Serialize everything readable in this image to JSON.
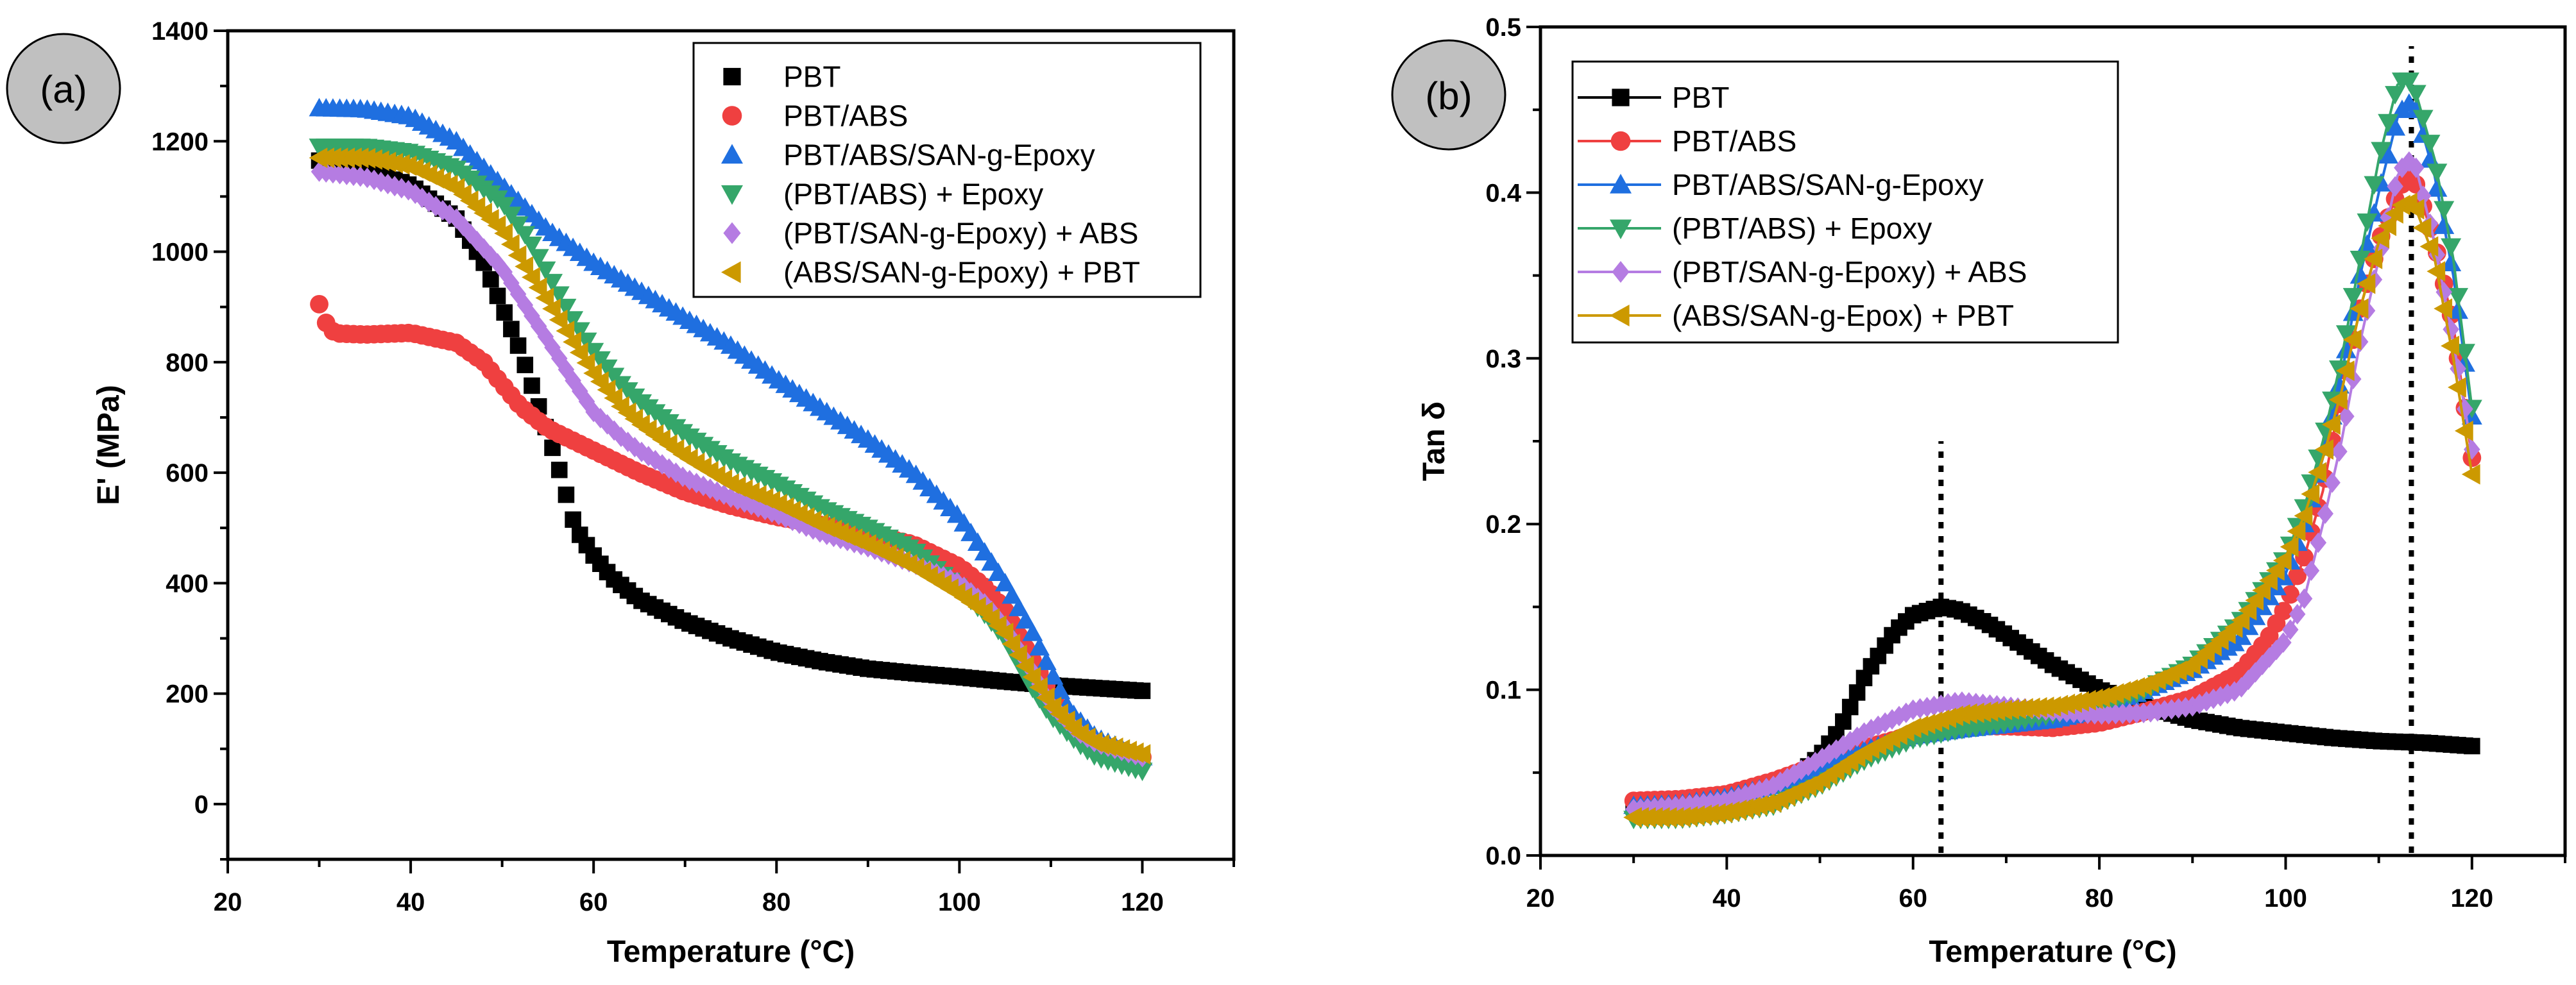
{
  "colors": {
    "PBT": "#000000",
    "PBT/ABS": "#ef4040",
    "PBT/ABS/SAN-g-Epoxy": "#1f6fe0",
    "(PBT/ABS) + Epoxy": "#35a66a",
    "(PBT/SAN-g-Epoxy) + ABS": "#b57ce2",
    "(ABS/SAN-g-Epoxy) + PBT": "#cc9900"
  },
  "chart_data": [
    {
      "panel_label": "(a)",
      "type": "scatter",
      "xlabel": "Temperature (°C)",
      "ylabel": "E' (MPa)",
      "xlim": [
        20,
        130
      ],
      "ylim": [
        -100,
        1400
      ],
      "xticks": [
        20,
        40,
        60,
        80,
        100,
        120
      ],
      "yticks": [
        0,
        200,
        400,
        600,
        800,
        1000,
        1200,
        1400
      ],
      "legend_position": "top-right",
      "series": [
        {
          "name": "PBT",
          "marker": "square",
          "x": [
            30,
            35,
            40,
            45,
            48,
            50,
            52,
            54,
            55,
            56,
            58,
            60,
            62,
            65,
            70,
            75,
            80,
            85,
            90,
            95,
            100,
            105,
            110,
            115,
            120
          ],
          "y": [
            1165,
            1150,
            1120,
            1060,
            980,
            900,
            820,
            720,
            670,
            620,
            500,
            450,
            410,
            370,
            330,
            300,
            275,
            258,
            245,
            237,
            230,
            222,
            215,
            210,
            205
          ]
        },
        {
          "name": "PBT/ABS",
          "marker": "circle",
          "x": [
            30,
            31,
            32,
            35,
            40,
            45,
            48,
            50,
            52,
            55,
            60,
            65,
            70,
            75,
            80,
            85,
            90,
            95,
            100,
            103,
            105,
            108,
            110,
            112,
            115,
            120
          ],
          "y": [
            905,
            860,
            852,
            850,
            853,
            835,
            800,
            760,
            720,
            680,
            640,
            600,
            565,
            540,
            520,
            505,
            490,
            470,
            430,
            390,
            350,
            260,
            200,
            150,
            110,
            85
          ]
        },
        {
          "name": "PBT/ABS/SAN-g-Epoxy",
          "marker": "triangle-up",
          "x": [
            30,
            35,
            40,
            45,
            50,
            55,
            60,
            65,
            70,
            75,
            80,
            85,
            90,
            95,
            100,
            103,
            105,
            108,
            110,
            112,
            115,
            120
          ],
          "y": [
            1260,
            1258,
            1245,
            1200,
            1120,
            1040,
            980,
            930,
            880,
            830,
            770,
            715,
            660,
            600,
            520,
            450,
            400,
            310,
            240,
            170,
            120,
            85
          ]
        },
        {
          "name": "(PBT/ABS) + Epoxy",
          "marker": "triangle-down",
          "x": [
            30,
            35,
            40,
            45,
            50,
            53,
            55,
            58,
            60,
            63,
            65,
            70,
            75,
            80,
            85,
            90,
            95,
            100,
            103,
            105,
            108,
            110,
            113,
            115,
            120
          ],
          "y": [
            1190,
            1190,
            1180,
            1150,
            1090,
            1020,
            960,
            870,
            820,
            760,
            730,
            670,
            620,
            580,
            535,
            500,
            460,
            390,
            340,
            300,
            210,
            160,
            110,
            85,
            60
          ]
        },
        {
          "name": "(PBT/SAN-g-Epoxy) + ABS",
          "marker": "diamond",
          "x": [
            30,
            35,
            40,
            45,
            50,
            53,
            55,
            58,
            60,
            63,
            65,
            70,
            75,
            80,
            85,
            90,
            95,
            100,
            103,
            105,
            108,
            110,
            113,
            115,
            120
          ],
          "y": [
            1145,
            1135,
            1110,
            1060,
            970,
            890,
            840,
            760,
            710,
            665,
            640,
            590,
            555,
            525,
            490,
            465,
            435,
            400,
            360,
            320,
            240,
            180,
            130,
            110,
            85
          ]
        },
        {
          "name": "(ABS/SAN-g-Epoxy) + PBT",
          "marker": "triangle-left",
          "x": [
            30,
            35,
            40,
            45,
            50,
            53,
            55,
            58,
            60,
            63,
            65,
            70,
            75,
            80,
            85,
            90,
            95,
            100,
            103,
            105,
            108,
            110,
            113,
            115,
            120
          ],
          "y": [
            1170,
            1170,
            1155,
            1115,
            1040,
            960,
            910,
            830,
            780,
            720,
            690,
            630,
            580,
            545,
            505,
            470,
            430,
            380,
            345,
            310,
            230,
            180,
            130,
            110,
            90
          ]
        }
      ]
    },
    {
      "panel_label": "(b)",
      "type": "line",
      "xlabel": "Temperature (°C)",
      "ylabel": "Tan δ",
      "xlim": [
        20,
        130
      ],
      "ylim": [
        0,
        0.5
      ],
      "xticks": [
        20,
        40,
        60,
        80,
        100,
        120
      ],
      "yticks": [
        "0.0",
        "0.1",
        "0.2",
        "0.3",
        "0.4",
        "0.5"
      ],
      "legend_position": "top-left",
      "annotations": [
        {
          "type": "dotted-vline",
          "x": 63,
          "y_top": 0.25
        },
        {
          "type": "dotted-vline",
          "x": 113.5,
          "y_top": 0.5
        }
      ],
      "series": [
        {
          "name": "PBT",
          "marker": "square",
          "x": [
            30,
            35,
            40,
            45,
            48,
            50,
            52,
            55,
            58,
            60,
            63,
            65,
            68,
            70,
            75,
            80,
            85,
            90,
            95,
            100,
            105,
            110,
            115,
            120
          ],
          "y": [
            0.03,
            0.031,
            0.035,
            0.043,
            0.05,
            0.06,
            0.075,
            0.11,
            0.135,
            0.145,
            0.15,
            0.148,
            0.14,
            0.133,
            0.115,
            0.1,
            0.09,
            0.082,
            0.077,
            0.074,
            0.071,
            0.069,
            0.068,
            0.066
          ]
        },
        {
          "name": "PBT/ABS",
          "marker": "circle",
          "x": [
            30,
            35,
            40,
            45,
            50,
            55,
            60,
            65,
            70,
            75,
            80,
            85,
            90,
            95,
            98,
            100,
            102,
            104,
            106,
            108,
            110,
            112,
            113,
            114,
            116,
            118,
            120
          ],
          "y": [
            0.033,
            0.034,
            0.037,
            0.045,
            0.055,
            0.065,
            0.073,
            0.078,
            0.078,
            0.077,
            0.08,
            0.087,
            0.095,
            0.11,
            0.13,
            0.15,
            0.18,
            0.22,
            0.28,
            0.33,
            0.37,
            0.4,
            0.41,
            0.405,
            0.37,
            0.32,
            0.24
          ]
        },
        {
          "name": "PBT/ABS/SAN-g-Epoxy",
          "marker": "triangle-up",
          "x": [
            30,
            35,
            40,
            45,
            50,
            55,
            60,
            65,
            70,
            75,
            80,
            85,
            90,
            95,
            100,
            102,
            104,
            106,
            108,
            110,
            112,
            113,
            114,
            116,
            118,
            120
          ],
          "y": [
            0.03,
            0.031,
            0.035,
            0.042,
            0.052,
            0.064,
            0.072,
            0.076,
            0.079,
            0.082,
            0.088,
            0.1,
            0.112,
            0.13,
            0.17,
            0.2,
            0.24,
            0.29,
            0.35,
            0.4,
            0.445,
            0.455,
            0.45,
            0.41,
            0.35,
            0.265
          ]
        },
        {
          "name": "(PBT/ABS) + Epoxy",
          "marker": "triangle-down",
          "x": [
            30,
            35,
            40,
            45,
            50,
            55,
            60,
            65,
            70,
            75,
            80,
            85,
            90,
            95,
            100,
            102,
            104,
            106,
            108,
            110,
            112,
            113,
            114,
            116,
            118,
            120
          ],
          "y": [
            0.022,
            0.022,
            0.025,
            0.03,
            0.042,
            0.058,
            0.07,
            0.076,
            0.08,
            0.085,
            0.09,
            0.1,
            0.115,
            0.14,
            0.18,
            0.21,
            0.25,
            0.3,
            0.36,
            0.42,
            0.465,
            0.47,
            0.46,
            0.42,
            0.36,
            0.27
          ]
        },
        {
          "name": "(PBT/SAN-g-Epoxy) + ABS",
          "marker": "diamond",
          "x": [
            30,
            35,
            40,
            45,
            50,
            55,
            60,
            65,
            70,
            75,
            80,
            85,
            90,
            95,
            100,
            102,
            104,
            106,
            108,
            110,
            112,
            113,
            114,
            116,
            118,
            120
          ],
          "y": [
            0.028,
            0.03,
            0.033,
            0.042,
            0.058,
            0.075,
            0.088,
            0.093,
            0.09,
            0.087,
            0.085,
            0.086,
            0.09,
            0.1,
            0.13,
            0.155,
            0.2,
            0.25,
            0.31,
            0.36,
            0.41,
            0.42,
            0.415,
            0.37,
            0.31,
            0.245
          ]
        },
        {
          "name": "(ABS/SAN-g-Epox) + PBT",
          "marker": "triangle-left",
          "x": [
            30,
            35,
            40,
            45,
            50,
            55,
            60,
            65,
            70,
            75,
            80,
            85,
            90,
            95,
            100,
            102,
            104,
            106,
            108,
            110,
            112,
            113,
            114,
            116,
            118,
            120
          ],
          "y": [
            0.023,
            0.023,
            0.026,
            0.032,
            0.045,
            0.063,
            0.077,
            0.085,
            0.088,
            0.09,
            0.095,
            0.103,
            0.115,
            0.14,
            0.18,
            0.205,
            0.24,
            0.28,
            0.33,
            0.37,
            0.39,
            0.395,
            0.39,
            0.36,
            0.3,
            0.23
          ]
        }
      ]
    }
  ]
}
